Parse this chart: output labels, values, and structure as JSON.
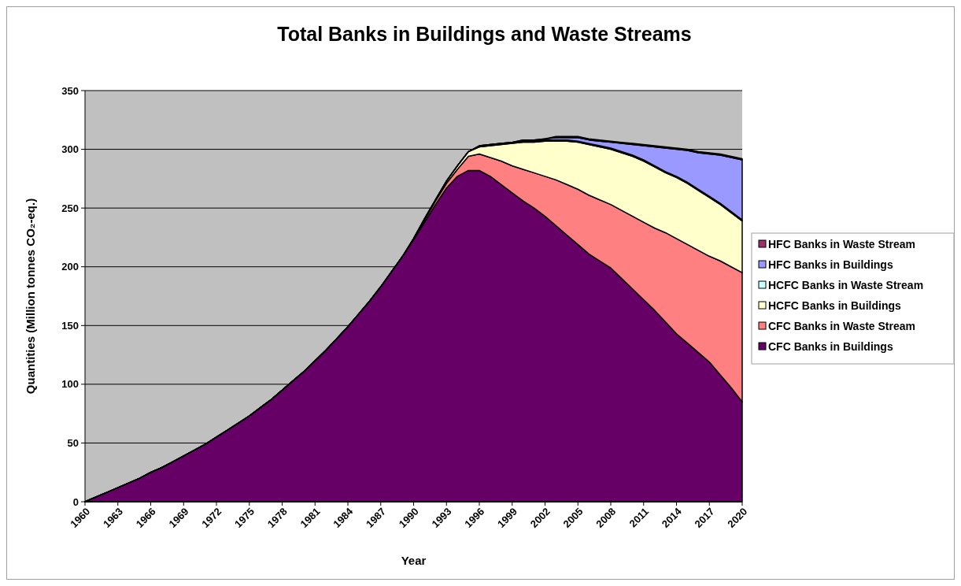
{
  "chart_data": {
    "type": "area",
    "stacked": true,
    "title": "Total Banks in Buildings and Waste Streams",
    "xlabel": "Year",
    "ylabel": "Quantities (Million tonnes CO₂-eq.)",
    "x": [
      1960,
      1961,
      1962,
      1963,
      1964,
      1965,
      1966,
      1967,
      1968,
      1969,
      1970,
      1971,
      1972,
      1973,
      1974,
      1975,
      1976,
      1977,
      1978,
      1979,
      1980,
      1981,
      1982,
      1983,
      1984,
      1985,
      1986,
      1987,
      1988,
      1989,
      1990,
      1991,
      1992,
      1993,
      1994,
      1995,
      1996,
      1997,
      1998,
      1999,
      2000,
      2001,
      2002,
      2003,
      2004,
      2005,
      2006,
      2007,
      2008,
      2009,
      2010,
      2011,
      2012,
      2013,
      2014,
      2015,
      2016,
      2017,
      2018,
      2019,
      2020
    ],
    "xlim": [
      1960,
      2020
    ],
    "xticks": [
      1960,
      1963,
      1966,
      1969,
      1972,
      1975,
      1978,
      1981,
      1984,
      1987,
      1990,
      1993,
      1996,
      1999,
      2002,
      2005,
      2008,
      2011,
      2014,
      2017,
      2020
    ],
    "ylim": [
      0,
      350
    ],
    "yticks": [
      0,
      50,
      100,
      150,
      200,
      250,
      300,
      350
    ],
    "grid": "y",
    "legend": "right",
    "series": [
      {
        "name": "CFC Banks in Buildings",
        "color": "#660066",
        "values": [
          0,
          4,
          8,
          12,
          16,
          20,
          25,
          29,
          34,
          39,
          44,
          49,
          55,
          61,
          67,
          73,
          80,
          87,
          95,
          103,
          111,
          120,
          129,
          139,
          149,
          160,
          171,
          183,
          196,
          209,
          223,
          238,
          253,
          267,
          277,
          282,
          282,
          277,
          270,
          263,
          256,
          250,
          243,
          235,
          227,
          219,
          211,
          205,
          199,
          190,
          181,
          172,
          163,
          153,
          143,
          135,
          127,
          119,
          108,
          97,
          85
        ]
      },
      {
        "name": "CFC Banks in Waste Stream",
        "color": "#ff8080",
        "values": [
          0,
          0,
          0,
          0,
          0,
          0,
          0,
          0,
          0,
          0,
          0,
          0,
          0,
          0,
          0,
          0,
          0,
          0,
          0,
          0,
          0,
          0,
          0,
          0,
          0,
          0,
          0,
          0,
          0,
          0,
          1,
          2,
          3,
          4,
          6,
          12,
          14,
          16,
          20,
          23,
          27,
          30,
          34,
          39,
          43,
          47,
          50,
          52,
          54,
          58,
          62,
          66,
          70,
          76,
          81,
          84,
          87,
          90,
          97,
          103,
          110
        ]
      },
      {
        "name": "HCFC Banks in Buildings",
        "color": "#ffffcc",
        "values": [
          0,
          0,
          0,
          0,
          0,
          0,
          0,
          0,
          0,
          0,
          0,
          0,
          0,
          0,
          0,
          0,
          0,
          0,
          0,
          0,
          0,
          0,
          0,
          0,
          0,
          0,
          0,
          0,
          0,
          0,
          0,
          1,
          1,
          2,
          3,
          4,
          6,
          10,
          14,
          19,
          23,
          26,
          30,
          33,
          37,
          40,
          43,
          45,
          47,
          49,
          51,
          52,
          52,
          51,
          52,
          52,
          51,
          50,
          48,
          46,
          44
        ]
      },
      {
        "name": "HCFC Banks in Waste Stream",
        "color": "#ccffff",
        "values": [
          0,
          0,
          0,
          0,
          0,
          0,
          0,
          0,
          0,
          0,
          0,
          0,
          0,
          0,
          0,
          0,
          0,
          0,
          0,
          0,
          0,
          0,
          0,
          0,
          0,
          0,
          0,
          0,
          0,
          0,
          0,
          0,
          0,
          0,
          0,
          0,
          1,
          1,
          1,
          1,
          1,
          1,
          1,
          1,
          1,
          1,
          1,
          1,
          1,
          1,
          1,
          1,
          1,
          1,
          1,
          1,
          1,
          1,
          1,
          1,
          1
        ]
      },
      {
        "name": "HFC Banks in Buildings",
        "color": "#9999ff",
        "values": [
          0,
          0,
          0,
          0,
          0,
          0,
          0,
          0,
          0,
          0,
          0,
          0,
          0,
          0,
          0,
          0,
          0,
          0,
          0,
          0,
          0,
          0,
          0,
          0,
          0,
          0,
          0,
          0,
          0,
          0,
          0,
          0,
          0,
          0,
          0,
          0,
          0,
          0,
          0,
          0,
          1,
          1,
          1,
          2,
          2,
          3,
          3,
          4,
          5,
          7,
          9,
          12,
          16,
          20,
          23,
          27,
          31,
          36,
          41,
          46,
          51
        ]
      },
      {
        "name": "HFC Banks in Waste Stream",
        "color": "#993366",
        "values": [
          0,
          0,
          0,
          0,
          0,
          0,
          0,
          0,
          0,
          0,
          0,
          0,
          0,
          0,
          0,
          0,
          0,
          0,
          0,
          0,
          0,
          0,
          0,
          0,
          0,
          0,
          0,
          0,
          0,
          0,
          0,
          0,
          0,
          0,
          0,
          0,
          0,
          0,
          0,
          0,
          0,
          0,
          0,
          1,
          1,
          1,
          1,
          1,
          1,
          1,
          1,
          1,
          1,
          1,
          1,
          1,
          1,
          1,
          1,
          1,
          1
        ]
      }
    ]
  }
}
